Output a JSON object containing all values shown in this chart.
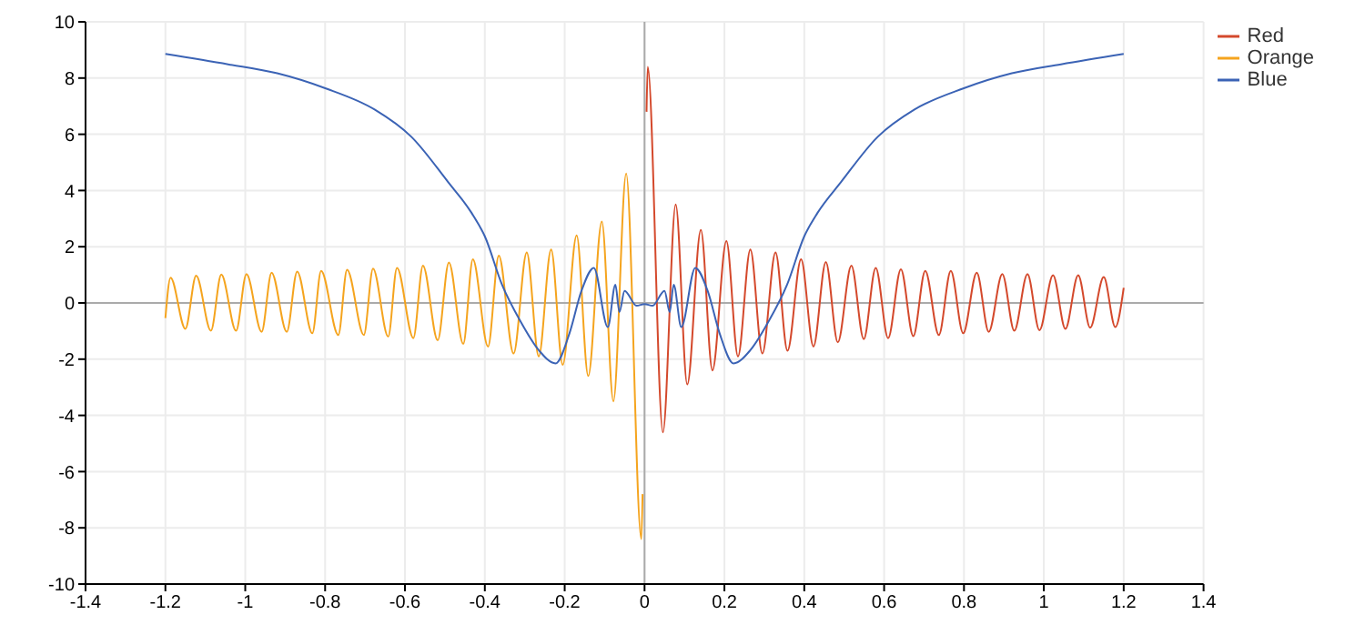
{
  "chart_data": {
    "type": "line",
    "xlim": [
      -1.4,
      1.4
    ],
    "xticks": [
      -1.4,
      -1.2,
      -1,
      -0.8,
      -0.6,
      -0.4,
      -0.2,
      0,
      0.2,
      0.4,
      0.6,
      0.8,
      1,
      1.2,
      1.4
    ],
    "ylim": [
      -10,
      10
    ],
    "yticks": [
      -10,
      -8,
      -6,
      -4,
      -2,
      0,
      2,
      4,
      6,
      8,
      10
    ],
    "grid": true,
    "legend": "top right",
    "marker": "none",
    "line_style": "solid",
    "series": [
      {
        "name": "Red",
        "color": "#d4492c",
        "x": [
          0.005,
          0.008,
          0.046,
          0.078,
          0.107,
          0.141,
          0.17,
          0.205,
          0.234,
          0.265,
          0.295,
          0.328,
          0.358,
          0.392,
          0.423,
          0.454,
          0.484,
          0.518,
          0.549,
          0.579,
          0.61,
          0.642,
          0.673,
          0.703,
          0.737,
          0.767,
          0.798,
          0.832,
          0.862,
          0.896,
          0.926,
          0.959,
          0.989,
          1.023,
          1.054,
          1.086,
          1.116,
          1.15,
          1.179,
          1.2
        ],
        "values": [
          6.8,
          8.4,
          -4.6,
          3.5,
          -2.9,
          2.6,
          -2.4,
          2.2,
          -1.9,
          1.9,
          -1.8,
          1.8,
          -1.7,
          1.55,
          -1.55,
          1.46,
          -1.4,
          1.33,
          -1.29,
          1.25,
          -1.25,
          1.2,
          -1.18,
          1.14,
          -1.14,
          1.14,
          -1.08,
          1.08,
          -1.03,
          1.03,
          -0.99,
          1.03,
          -0.97,
          0.99,
          -0.92,
          0.99,
          -0.88,
          0.92,
          -0.86,
          0.54
        ]
      },
      {
        "name": "Orange",
        "color": "#f5a41e",
        "x": [
          -1.2,
          -1.187,
          -1.15,
          -1.123,
          -1.086,
          -1.06,
          -1.023,
          -0.997,
          -0.959,
          -0.934,
          -0.896,
          -0.87,
          -0.832,
          -0.81,
          -0.767,
          -0.745,
          -0.703,
          -0.68,
          -0.642,
          -0.62,
          -0.579,
          -0.555,
          -0.518,
          -0.49,
          -0.454,
          -0.43,
          -0.392,
          -0.365,
          -0.328,
          -0.295,
          -0.265,
          -0.234,
          -0.205,
          -0.17,
          -0.141,
          -0.107,
          -0.078,
          -0.046,
          -0.008,
          -0.005
        ],
        "values": [
          -0.54,
          0.9,
          -0.92,
          0.97,
          -0.99,
          1.01,
          -0.99,
          1.03,
          -1.03,
          1.08,
          -1.03,
          1.12,
          -1.08,
          1.14,
          -1.14,
          1.18,
          -1.14,
          1.22,
          -1.2,
          1.25,
          -1.25,
          1.33,
          -1.33,
          1.44,
          -1.46,
          1.55,
          -1.55,
          1.68,
          -1.8,
          1.8,
          -1.9,
          1.9,
          -2.2,
          2.4,
          -2.6,
          2.9,
          -3.5,
          4.6,
          -8.4,
          -6.8
        ]
      },
      {
        "name": "Blue",
        "color": "#3b63b5",
        "x": [
          -1.2,
          -1.043,
          -0.92,
          -0.798,
          -0.676,
          -0.584,
          -0.492,
          -0.433,
          -0.4,
          -0.357,
          -0.311,
          -0.265,
          -0.223,
          -0.188,
          -0.158,
          -0.127,
          -0.092,
          -0.073,
          -0.063,
          -0.05,
          -0.02,
          0,
          0.02,
          0.05,
          0.063,
          0.073,
          0.092,
          0.127,
          0.158,
          0.188,
          0.223,
          0.265,
          0.311,
          0.357,
          0.4,
          0.433,
          0.492,
          0.584,
          0.676,
          0.798,
          0.92,
          1.043,
          1.2
        ],
        "values": [
          8.86,
          8.49,
          8.17,
          7.63,
          6.88,
          5.91,
          4.3,
          3.2,
          2.37,
          0.65,
          -0.65,
          -1.68,
          -2.15,
          -1.08,
          0.43,
          1.25,
          -0.86,
          0.65,
          -0.32,
          0.43,
          -0.1,
          -0.04,
          -0.1,
          0.43,
          -0.32,
          0.65,
          -0.86,
          1.25,
          0.43,
          -1.08,
          -2.15,
          -1.68,
          -0.65,
          0.65,
          2.37,
          3.2,
          4.3,
          5.91,
          6.88,
          7.63,
          8.17,
          8.49,
          8.86
        ]
      }
    ]
  }
}
